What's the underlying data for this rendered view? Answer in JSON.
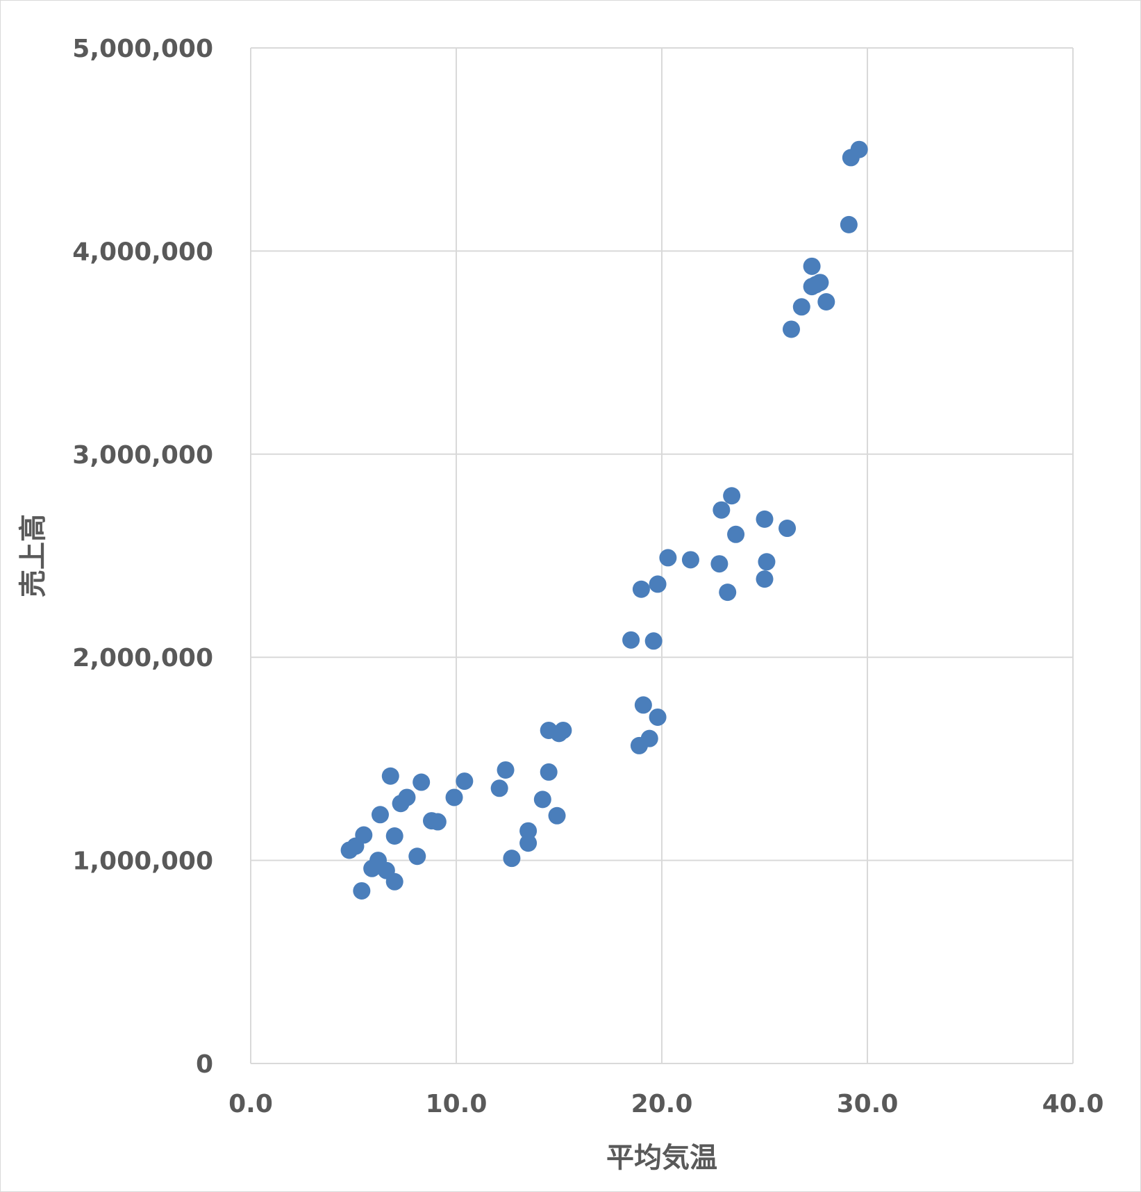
{
  "chart_data": {
    "type": "scatter",
    "title": "",
    "xlabel": "平均気温",
    "ylabel": "売上高",
    "xlim": [
      0,
      40
    ],
    "ylim": [
      0,
      5000000
    ],
    "x_ticks": [
      "0.0",
      "10.0",
      "20.0",
      "30.0",
      "40.0"
    ],
    "y_ticks": [
      "0",
      "1,000,000",
      "2,000,000",
      "3,000,000",
      "4,000,000",
      "5,000,000"
    ],
    "grid": true,
    "legend": "none",
    "marker_color": "#4a7ebb",
    "series": [
      {
        "points": [
          [
            4.8,
            1050000
          ],
          [
            5.1,
            1070000
          ],
          [
            5.5,
            1125000
          ],
          [
            5.4,
            850000
          ],
          [
            5.9,
            960000
          ],
          [
            6.2,
            1000000
          ],
          [
            6.3,
            1225000
          ],
          [
            6.6,
            950000
          ],
          [
            6.8,
            1415000
          ],
          [
            7.0,
            895000
          ],
          [
            7.0,
            1120000
          ],
          [
            7.3,
            1280000
          ],
          [
            7.6,
            1310000
          ],
          [
            8.1,
            1020000
          ],
          [
            8.3,
            1385000
          ],
          [
            8.8,
            1195000
          ],
          [
            9.1,
            1190000
          ],
          [
            9.9,
            1310000
          ],
          [
            10.4,
            1390000
          ],
          [
            12.1,
            1355000
          ],
          [
            12.4,
            1445000
          ],
          [
            12.7,
            1010000
          ],
          [
            13.5,
            1085000
          ],
          [
            13.5,
            1145000
          ],
          [
            14.2,
            1300000
          ],
          [
            14.5,
            1640000
          ],
          [
            14.5,
            1435000
          ],
          [
            14.9,
            1220000
          ],
          [
            15.0,
            1625000
          ],
          [
            15.2,
            1640000
          ],
          [
            18.5,
            2085000
          ],
          [
            18.9,
            1565000
          ],
          [
            19.0,
            2335000
          ],
          [
            19.1,
            1765000
          ],
          [
            19.4,
            1600000
          ],
          [
            19.6,
            2080000
          ],
          [
            19.8,
            2360000
          ],
          [
            19.8,
            1705000
          ],
          [
            20.3,
            2490000
          ],
          [
            21.4,
            2480000
          ],
          [
            22.8,
            2460000
          ],
          [
            22.9,
            2725000
          ],
          [
            23.2,
            2320000
          ],
          [
            23.4,
            2795000
          ],
          [
            23.6,
            2605000
          ],
          [
            25.0,
            2385000
          ],
          [
            25.0,
            2680000
          ],
          [
            25.1,
            2470000
          ],
          [
            26.1,
            2635000
          ],
          [
            26.3,
            3615000
          ],
          [
            26.8,
            3725000
          ],
          [
            27.3,
            3925000
          ],
          [
            27.3,
            3825000
          ],
          [
            27.5,
            3835000
          ],
          [
            27.7,
            3845000
          ],
          [
            28.0,
            3750000
          ],
          [
            29.1,
            4130000
          ],
          [
            29.2,
            4460000
          ],
          [
            29.6,
            4500000
          ]
        ]
      }
    ]
  }
}
